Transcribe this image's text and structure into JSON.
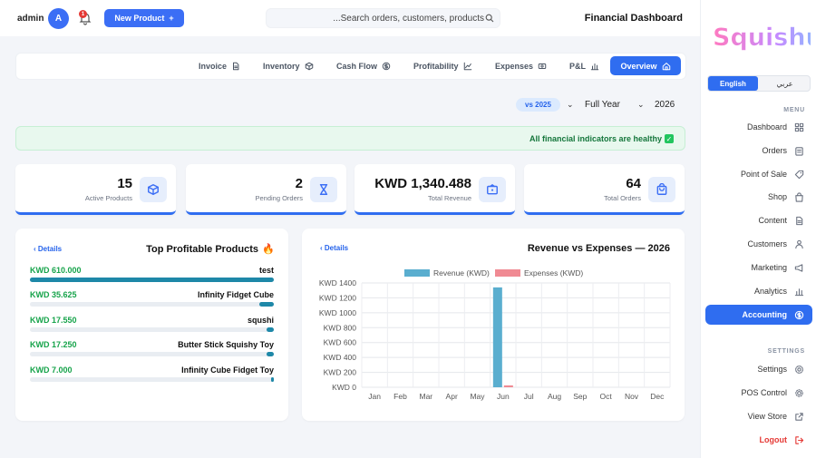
{
  "header": {
    "user": "admin",
    "avatar_initial": "A",
    "notification_count": "1",
    "new_product_label": "New Product",
    "search_placeholder": "...Search orders, customers, products",
    "page_title": "Financial Dashboard"
  },
  "sidebar": {
    "brand": "Squishup",
    "lang_en": "English",
    "lang_ar": "عربي",
    "menu_label": "MENU",
    "menu_items": [
      {
        "label": "Dashboard",
        "icon": "grid-icon"
      },
      {
        "label": "Orders",
        "icon": "clipboard-icon"
      },
      {
        "label": "Point of Sale",
        "icon": "tag-icon"
      },
      {
        "label": "Shop",
        "icon": "bag-icon"
      },
      {
        "label": "Content",
        "icon": "file-icon"
      },
      {
        "label": "Customers",
        "icon": "users-icon"
      },
      {
        "label": "Marketing",
        "icon": "megaphone-icon"
      },
      {
        "label": "Analytics",
        "icon": "bar-chart-icon"
      },
      {
        "label": "Accounting",
        "icon": "dollar-icon",
        "active": true
      }
    ],
    "settings_label": "SETTINGS",
    "settings_items": [
      {
        "label": "Settings",
        "icon": "gear-icon"
      },
      {
        "label": "POS Control",
        "icon": "cog-icon"
      },
      {
        "label": "View Store",
        "icon": "external-link-icon"
      },
      {
        "label": "Logout",
        "icon": "logout-icon"
      }
    ]
  },
  "tabs": [
    {
      "label": "Invoice",
      "icon": "file-icon"
    },
    {
      "label": "Inventory",
      "icon": "box-icon"
    },
    {
      "label": "Cash Flow",
      "icon": "dollar-icon"
    },
    {
      "label": "Profitability",
      "icon": "line-chart-icon"
    },
    {
      "label": "Expenses",
      "icon": "money-icon"
    },
    {
      "label": "P&L",
      "icon": "bar-chart-icon"
    },
    {
      "label": "Overview",
      "icon": "home-icon",
      "active": true
    }
  ],
  "filters": {
    "compare": "vs 2025",
    "period": "Full Year",
    "year": "2026"
  },
  "banner": {
    "text": "All financial indicators are healthy"
  },
  "stats": [
    {
      "value": "15",
      "label": "Active Products",
      "icon": "box-icon"
    },
    {
      "value": "2",
      "label": "Pending Orders",
      "icon": "hourglass-icon"
    },
    {
      "value": "KWD 1,340.488",
      "label": "Total Revenue",
      "icon": "wallet-icon"
    },
    {
      "value": "64",
      "label": "Total Orders",
      "icon": "cart-icon"
    }
  ],
  "top_products": {
    "title": "Top Profitable Products",
    "details": "Details",
    "items": [
      {
        "value": "KWD 610.000",
        "name": "test",
        "fraction": 1.0
      },
      {
        "value": "KWD 35.625",
        "name": "Infinity Fidget Cube",
        "fraction": 0.058
      },
      {
        "value": "KWD 17.550",
        "name": "squshi",
        "fraction": 0.029
      },
      {
        "value": "KWD 17.250",
        "name": "Butter Stick Squishy Toy",
        "fraction": 0.028
      },
      {
        "value": "KWD 7.000",
        "name": "Infinity Cube Fidget Toy",
        "fraction": 0.012
      }
    ]
  },
  "revenue_chart": {
    "details": "Details",
    "title": "Revenue vs Expenses — 2026",
    "colors": {
      "revenue": "#5aaecf",
      "expenses": "#f08a93"
    },
    "chart_data": {
      "type": "bar",
      "categories": [
        "Jan",
        "Feb",
        "Mar",
        "Apr",
        "May",
        "Jun",
        "Jul",
        "Aug",
        "Sep",
        "Oct",
        "Nov",
        "Dec"
      ],
      "series": [
        {
          "name": "Revenue (KWD)",
          "values": [
            0,
            0,
            0,
            0,
            0,
            1340.488,
            0,
            0,
            0,
            0,
            0,
            0
          ]
        },
        {
          "name": "Expenses (KWD)",
          "values": [
            0,
            0,
            0,
            0,
            0,
            25,
            0,
            0,
            0,
            0,
            0,
            0
          ]
        }
      ],
      "yticks": [
        "KWD 0",
        "KWD 200",
        "KWD 400",
        "KWD 600",
        "KWD 800",
        "KWD 1000",
        "KWD 1200",
        "KWD 1400"
      ],
      "ylim": [
        0,
        1400
      ],
      "grid": true,
      "legend": "top"
    }
  }
}
